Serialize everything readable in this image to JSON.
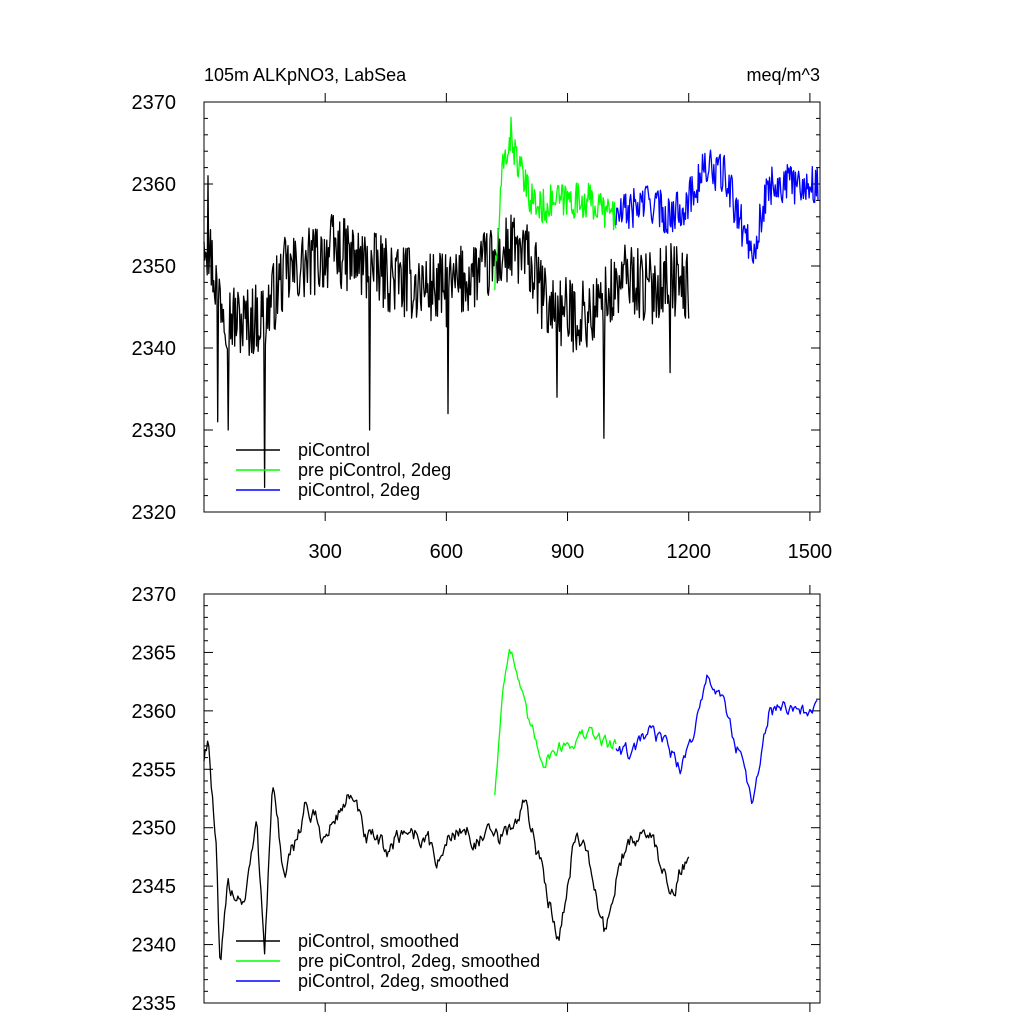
{
  "chart_data": [
    {
      "type": "line",
      "title": "105m ALKpNO3, LabSea",
      "units": "meq/m^3",
      "xlim": [
        0,
        1525
      ],
      "ylim": [
        2320,
        2370
      ],
      "xticks": [
        300,
        600,
        900,
        1200,
        1500
      ],
      "yticks": [
        2320,
        2330,
        2340,
        2350,
        2360,
        2370
      ],
      "xtick_labels": [
        "300",
        "600",
        "900",
        "1200",
        "1500"
      ],
      "ytick_labels": [
        "2320",
        "2330",
        "2340",
        "2350",
        "2360",
        "2370"
      ],
      "grid": false,
      "legend": "bottom-left",
      "series": [
        {
          "name": "piControl",
          "color": "#000000",
          "x_range": [
            0,
            1200
          ],
          "mean": 2349,
          "amplitude": 4,
          "noise": 4.5,
          "anchors": [
            [
              0,
              2355
            ],
            [
              30,
              2348
            ],
            [
              60,
              2344
            ],
            [
              100,
              2343
            ],
            [
              150,
              2344
            ],
            [
              200,
              2349
            ],
            [
              250,
              2350
            ],
            [
              320,
              2352
            ],
            [
              400,
              2350
            ],
            [
              500,
              2348
            ],
            [
              600,
              2347
            ],
            [
              700,
              2350
            ],
            [
              760,
              2352
            ],
            [
              800,
              2351
            ],
            [
              850,
              2345
            ],
            [
              900,
              2344
            ],
            [
              960,
              2344
            ],
            [
              1000,
              2346
            ],
            [
              1050,
              2349
            ],
            [
              1100,
              2347
            ],
            [
              1150,
              2349
            ],
            [
              1200,
              2347
            ]
          ],
          "spikes": [
            [
              10,
              2361
            ],
            [
              35,
              2331
            ],
            [
              60,
              2330
            ],
            [
              150,
              2323
            ],
            [
              410,
              2330
            ],
            [
              605,
              2332
            ],
            [
              875,
              2334
            ],
            [
              990,
              2329
            ],
            [
              1155,
              2337
            ]
          ]
        },
        {
          "name": "pre piControl, 2deg",
          "color": "#00ff00",
          "x_range": [
            720,
            1020
          ],
          "anchors": [
            [
              720,
              2348
            ],
            [
              740,
              2362
            ],
            [
              760,
              2366
            ],
            [
              780,
              2362
            ],
            [
              800,
              2359
            ],
            [
              830,
              2357
            ],
            [
              870,
              2358
            ],
            [
              950,
              2358
            ],
            [
              1020,
              2356
            ]
          ],
          "noise": 2.2
        },
        {
          "name": "piControl, 2deg",
          "color": "#0000ff",
          "x_range": [
            1020,
            1520
          ],
          "anchors": [
            [
              1020,
              2356
            ],
            [
              1060,
              2357
            ],
            [
              1100,
              2358
            ],
            [
              1150,
              2356
            ],
            [
              1200,
              2358
            ],
            [
              1240,
              2362
            ],
            [
              1290,
              2361
            ],
            [
              1330,
              2355
            ],
            [
              1360,
              2352
            ],
            [
              1400,
              2360
            ],
            [
              1450,
              2360
            ],
            [
              1520,
              2360
            ]
          ],
          "noise": 2.5
        }
      ]
    },
    {
      "type": "line",
      "xlim": [
        0,
        1525
      ],
      "ylim": [
        2335,
        2370
      ],
      "xticks": [
        300,
        600,
        900,
        1200,
        1500
      ],
      "yticks": [
        2335,
        2340,
        2345,
        2350,
        2355,
        2360,
        2365,
        2370
      ],
      "ytick_labels": [
        "2335",
        "2340",
        "2345",
        "2350",
        "2355",
        "2360",
        "2365",
        "2370"
      ],
      "grid": false,
      "legend": "bottom-left",
      "series": [
        {
          "name": "piControl, smoothed",
          "color": "#000000",
          "x_range": [
            0,
            1200
          ],
          "anchors": [
            [
              0,
              2356
            ],
            [
              10,
              2358
            ],
            [
              30,
              2348
            ],
            [
              40,
              2337
            ],
            [
              60,
              2345
            ],
            [
              100,
              2344
            ],
            [
              130,
              2350
            ],
            [
              150,
              2340
            ],
            [
              170,
              2354
            ],
            [
              200,
              2345
            ],
            [
              250,
              2352
            ],
            [
              300,
              2349
            ],
            [
              360,
              2353
            ],
            [
              400,
              2349
            ],
            [
              450,
              2348
            ],
            [
              500,
              2350
            ],
            [
              550,
              2349
            ],
            [
              580,
              2347
            ],
            [
              620,
              2350
            ],
            [
              680,
              2349
            ],
            [
              740,
              2349
            ],
            [
              800,
              2352
            ],
            [
              850,
              2344
            ],
            [
              880,
              2341
            ],
            [
              920,
              2350
            ],
            [
              960,
              2346
            ],
            [
              990,
              2341
            ],
            [
              1030,
              2347
            ],
            [
              1080,
              2350
            ],
            [
              1120,
              2348
            ],
            [
              1150,
              2345
            ],
            [
              1200,
              2347
            ]
          ],
          "noise": 1.4
        },
        {
          "name": "pre piControl, 2deg, smoothed",
          "color": "#00ff00",
          "x_range": [
            720,
            1020
          ],
          "anchors": [
            [
              720,
              2353
            ],
            [
              740,
              2362
            ],
            [
              755,
              2366
            ],
            [
              770,
              2364
            ],
            [
              800,
              2359
            ],
            [
              840,
              2356
            ],
            [
              880,
              2357
            ],
            [
              950,
              2358
            ],
            [
              1020,
              2357
            ]
          ],
          "noise": 1.0
        },
        {
          "name": "piControl, 2deg, smoothed",
          "color": "#0000ff",
          "x_range": [
            1020,
            1520
          ],
          "anchors": [
            [
              1020,
              2357
            ],
            [
              1060,
              2356
            ],
            [
              1100,
              2358
            ],
            [
              1150,
              2357
            ],
            [
              1180,
              2355
            ],
            [
              1220,
              2359
            ],
            [
              1250,
              2363
            ],
            [
              1290,
              2360
            ],
            [
              1320,
              2357
            ],
            [
              1360,
              2352
            ],
            [
              1400,
              2360
            ],
            [
              1450,
              2360
            ],
            [
              1520,
              2360
            ]
          ],
          "noise": 1.1
        }
      ]
    }
  ]
}
